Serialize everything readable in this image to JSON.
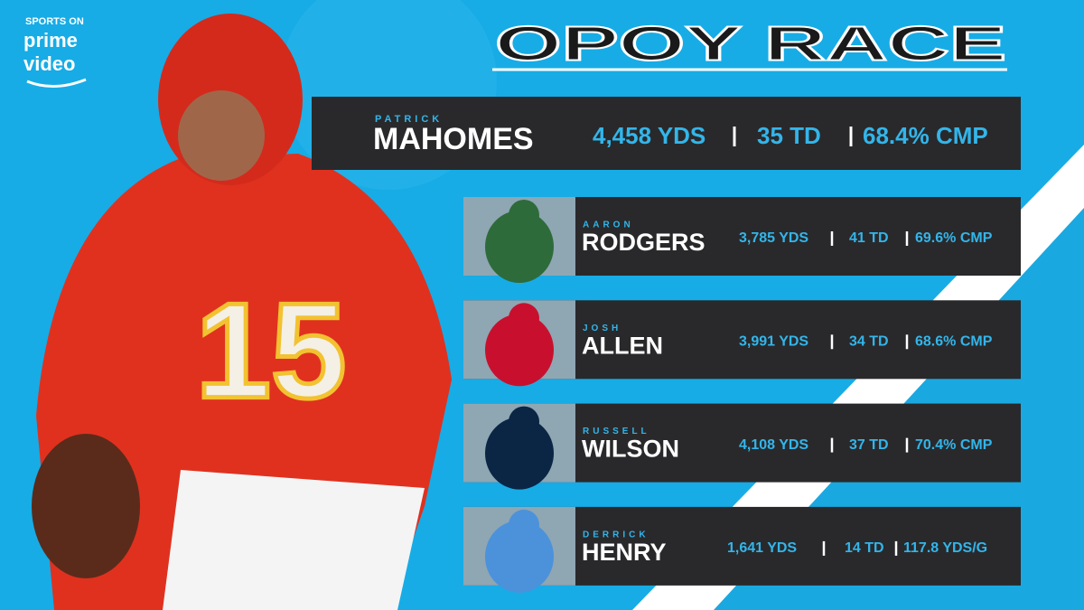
{
  "brand": {
    "line1": "SPORTS ON",
    "line2": "prime",
    "line3": "video"
  },
  "title": "OPOY RACE",
  "players": [
    {
      "first": "PATRICK",
      "last": "MAHOMES",
      "stats": [
        "4,458 YDS",
        "35 TD",
        "68.4% CMP"
      ]
    },
    {
      "first": "AARON",
      "last": "RODGERS",
      "stats": [
        "3,785 YDS",
        "41 TD",
        "69.6% CMP"
      ]
    },
    {
      "first": "JOSH",
      "last": "ALLEN",
      "stats": [
        "3,991 YDS",
        "34 TD",
        "68.6% CMP"
      ]
    },
    {
      "first": "RUSSELL",
      "last": "WILSON",
      "stats": [
        "4,108 YDS",
        "37 TD",
        "70.4% CMP"
      ]
    },
    {
      "first": "DERRICK",
      "last": "HENRY",
      "stats": [
        "1,641 YDS",
        "14 TD",
        "117.8 YDS/G"
      ]
    }
  ]
}
